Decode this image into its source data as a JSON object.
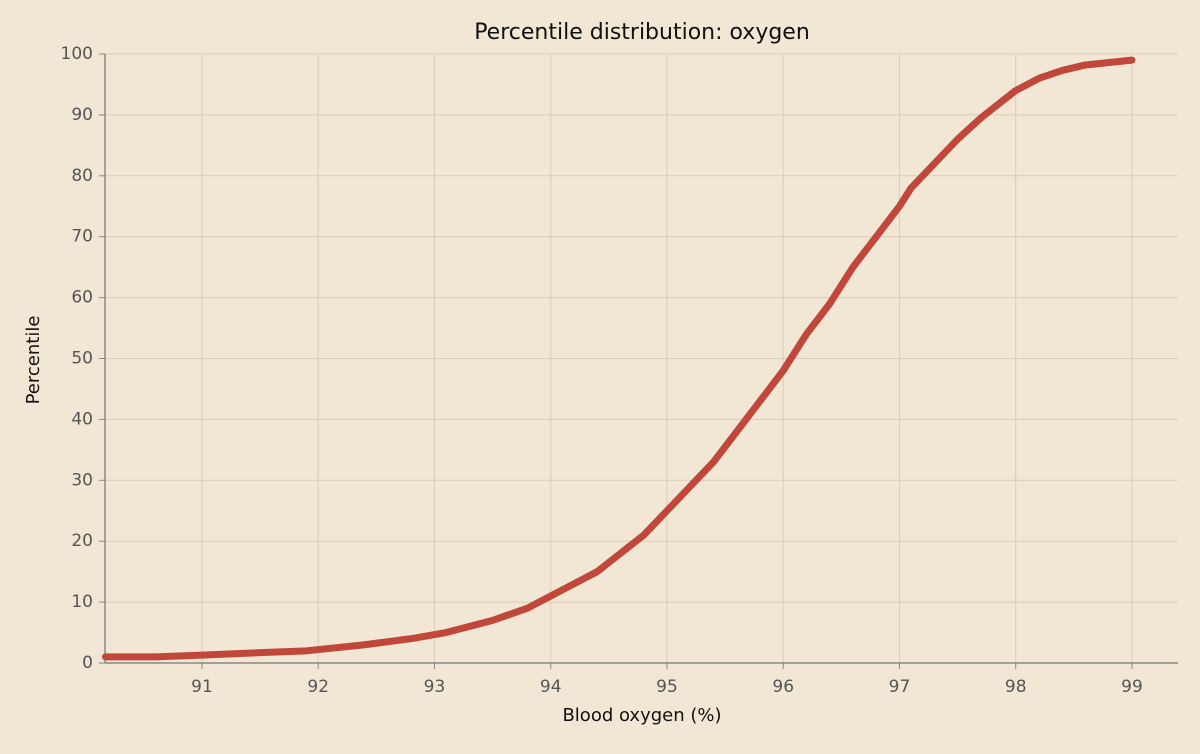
{
  "chart_data": {
    "type": "line",
    "title": "Percentile distribution: oxygen",
    "x_label": "Blood oxygen (%)",
    "y_label": "Percentile",
    "xlim": [
      90.166,
      99.396
    ],
    "ylim": [
      0,
      100
    ],
    "xticks": [
      91,
      92,
      93,
      94,
      95,
      96,
      97,
      98,
      99
    ],
    "yticks": [
      0,
      10,
      20,
      30,
      40,
      50,
      60,
      70,
      80,
      90,
      100
    ],
    "grid": true,
    "series": [
      {
        "name": "oxygen",
        "color": "#c0473a",
        "x": [
          90.17,
          90.6,
          91,
          91.5,
          91.9,
          92.4,
          92.8,
          93.1,
          93.5,
          93.8,
          94,
          94.2,
          94.4,
          94.6,
          94.8,
          95,
          95.2,
          95.4,
          95.6,
          95.8,
          96,
          96.2,
          96.4,
          96.6,
          96.8,
          97,
          97.1,
          97.3,
          97.5,
          97.7,
          97.9,
          98,
          98.2,
          98.4,
          98.6,
          99
        ],
        "values": [
          1,
          1,
          1.3,
          1.7,
          2,
          3,
          4,
          5,
          7,
          9,
          11,
          13,
          15,
          18,
          21,
          25,
          29,
          33,
          38,
          43,
          48,
          54,
          59,
          65,
          70,
          75,
          78,
          82,
          86,
          89.5,
          92.5,
          94,
          96,
          97.3,
          98.2,
          99
        ]
      }
    ]
  }
}
